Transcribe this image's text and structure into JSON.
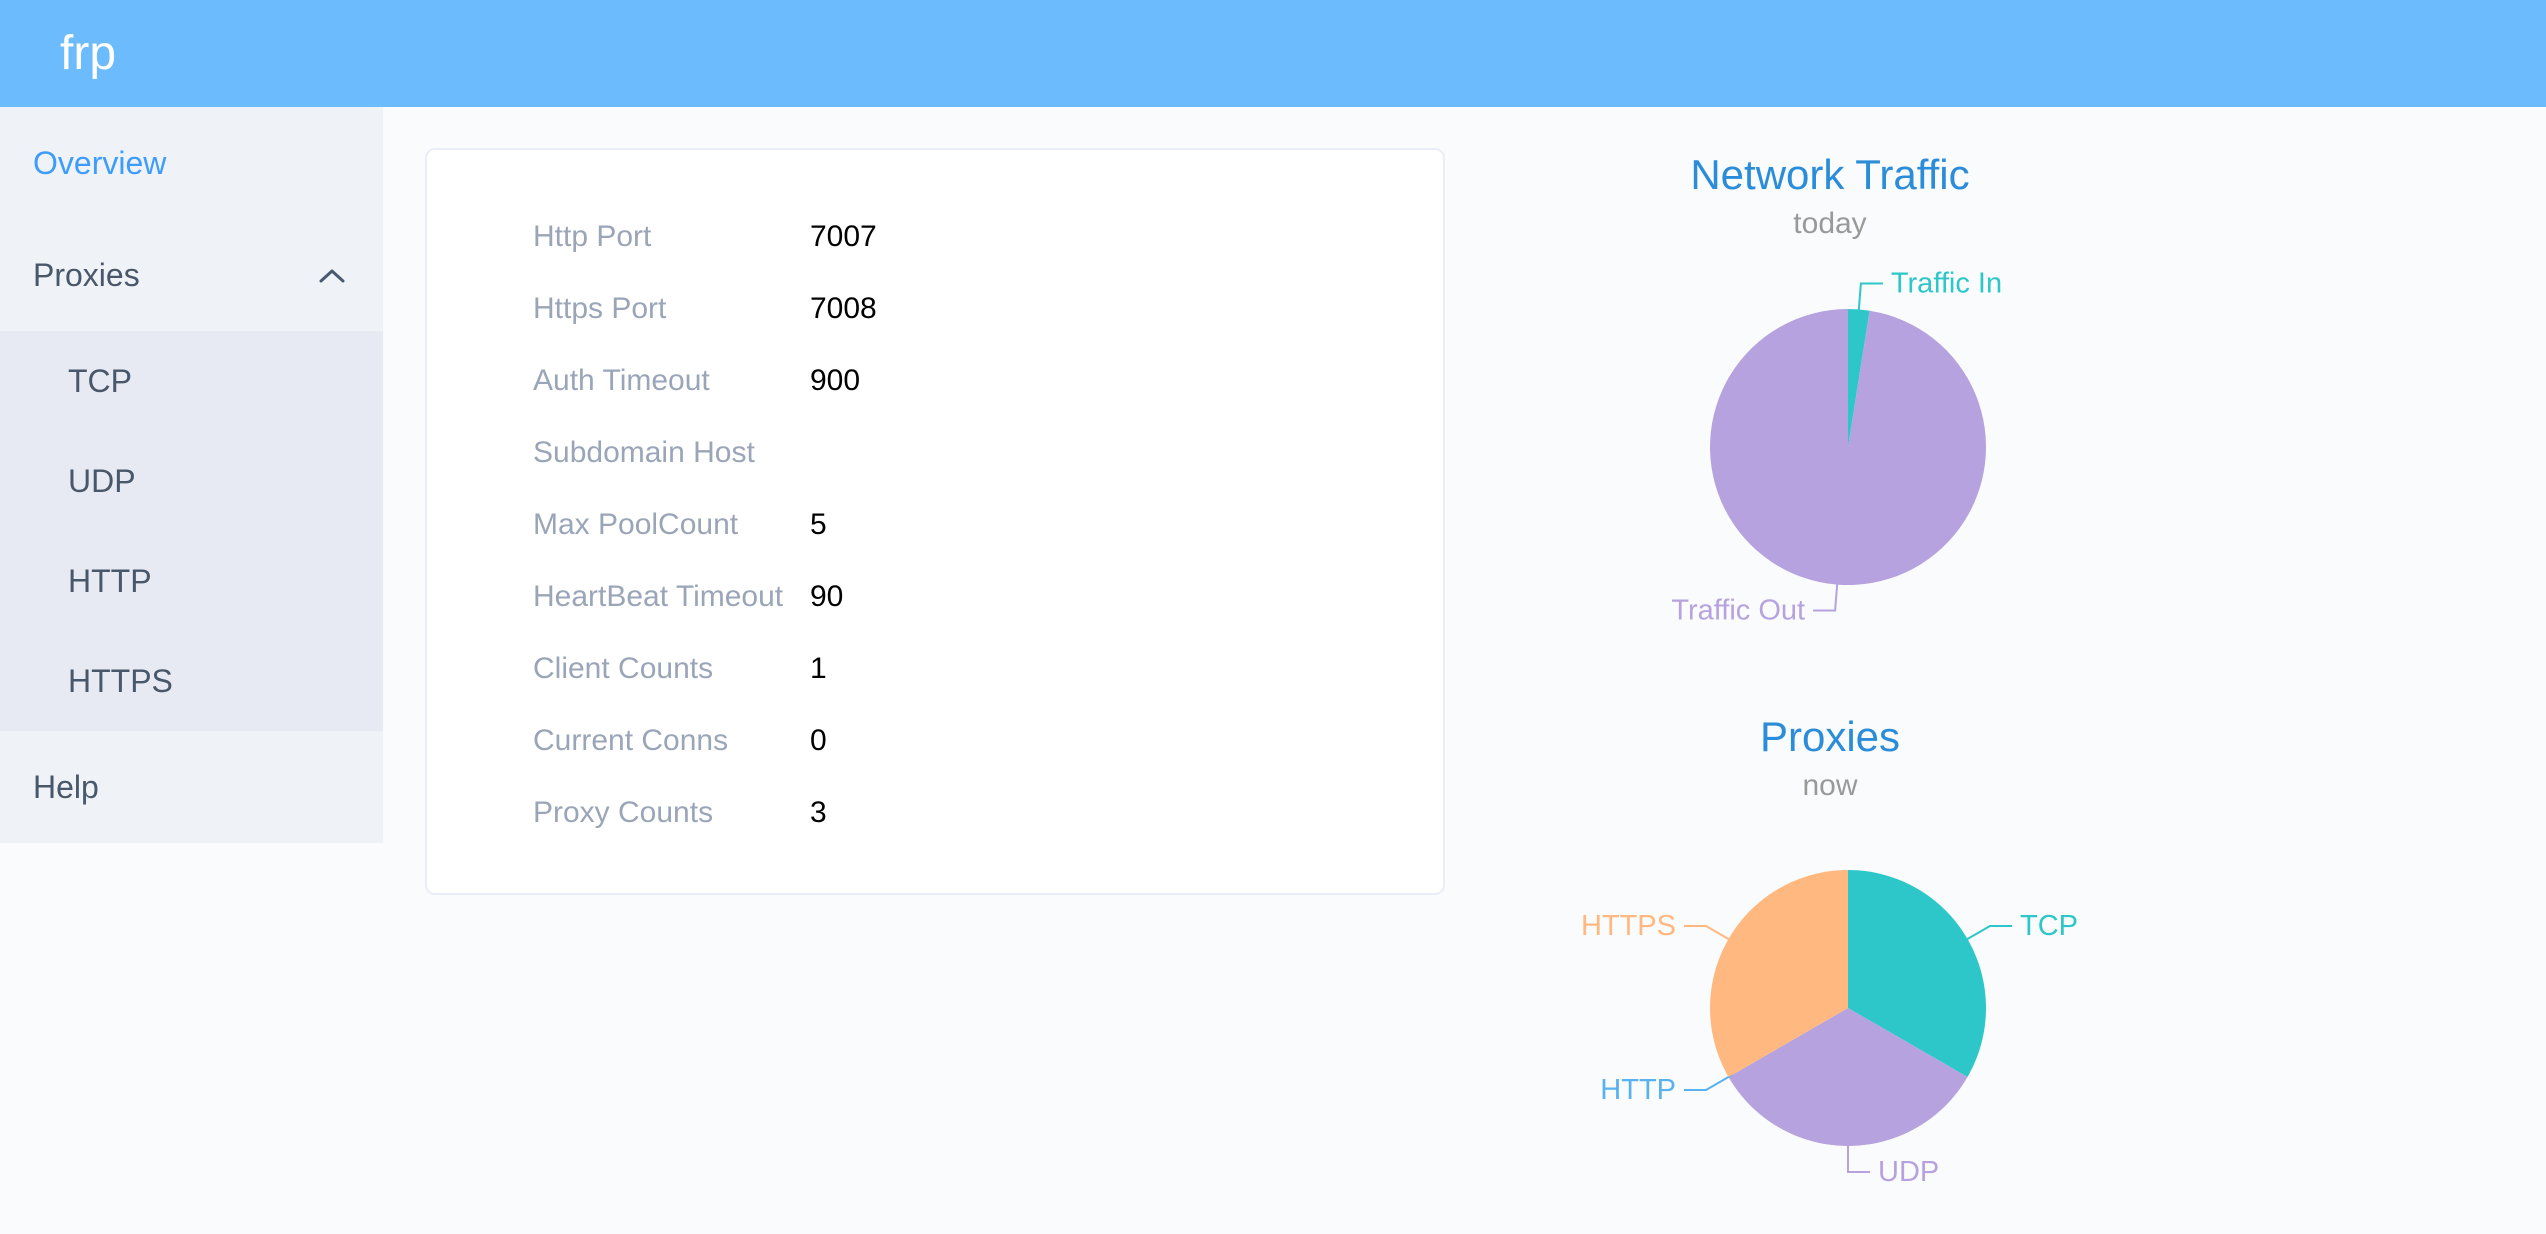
{
  "header": {
    "logo": "frp"
  },
  "sidebar": {
    "items": [
      {
        "label": "Overview",
        "active": true
      },
      {
        "label": "Proxies",
        "expanded": true,
        "children": [
          "TCP",
          "UDP",
          "HTTP",
          "HTTPS"
        ]
      },
      {
        "label": "Help"
      }
    ]
  },
  "server_info": {
    "rows": [
      {
        "label": "Http Port",
        "value": "7007"
      },
      {
        "label": "Https Port",
        "value": "7008"
      },
      {
        "label": "Auth Timeout",
        "value": "900"
      },
      {
        "label": "Subdomain Host",
        "value": ""
      },
      {
        "label": "Max PoolCount",
        "value": "5"
      },
      {
        "label": "HeartBeat Timeout",
        "value": "90"
      },
      {
        "label": "Client Counts",
        "value": "1"
      },
      {
        "label": "Current Conns",
        "value": "0"
      },
      {
        "label": "Proxy Counts",
        "value": "3"
      }
    ]
  },
  "chart_data": [
    {
      "type": "pie",
      "title": "Network Traffic",
      "subtitle": "today",
      "legend_position": "outside-callout",
      "start_angle": "top-clockwise",
      "series": [
        {
          "name": "Traffic In",
          "value": 2.5,
          "color": "#2ec7c9"
        },
        {
          "name": "Traffic Out",
          "value": 97.5,
          "color": "#b6a2de"
        }
      ]
    },
    {
      "type": "pie",
      "title": "Proxies",
      "subtitle": "now",
      "legend_position": "outside-callout",
      "start_angle": "top-clockwise",
      "series": [
        {
          "name": "TCP",
          "value": 1,
          "color": "#2ec7c9"
        },
        {
          "name": "UDP",
          "value": 1,
          "color": "#b6a2de"
        },
        {
          "name": "HTTP",
          "value": 0,
          "color": "#5ab1ef"
        },
        {
          "name": "HTTPS",
          "value": 1,
          "color": "#ffb980"
        }
      ]
    }
  ],
  "colors": {
    "header_bg": "#6cbbfc",
    "menu_active": "#3e9cfa",
    "chart_title": "#2b8dd9",
    "chart_subtitle": "#999999"
  }
}
